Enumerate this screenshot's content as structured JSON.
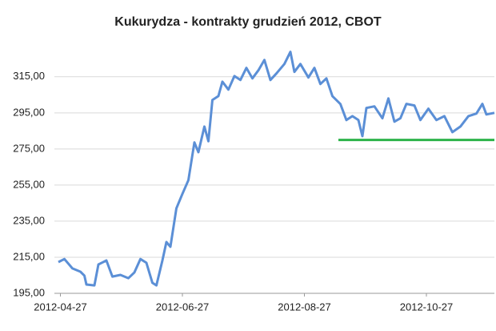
{
  "chart_data": {
    "type": "line",
    "title": "Kukurydza - kontrakty grudzień 2012, CBOT",
    "x": [
      "2012-04-26",
      "2012-04-29",
      "2012-05-03",
      "2012-05-07",
      "2012-05-09",
      "2012-05-10",
      "2012-05-14",
      "2012-05-16",
      "2012-05-20",
      "2012-05-23",
      "2012-05-27",
      "2012-05-31",
      "2012-06-03",
      "2012-06-06",
      "2012-06-09",
      "2012-06-12",
      "2012-06-14",
      "2012-06-17",
      "2012-06-19",
      "2012-06-21",
      "2012-06-24",
      "2012-06-27",
      "2012-06-30",
      "2012-07-03",
      "2012-07-05",
      "2012-07-08",
      "2012-07-10",
      "2012-07-12",
      "2012-07-15",
      "2012-07-17",
      "2012-07-20",
      "2012-07-23",
      "2012-07-26",
      "2012-07-29",
      "2012-08-01",
      "2012-08-04",
      "2012-08-07",
      "2012-08-10",
      "2012-08-13",
      "2012-08-17",
      "2012-08-20",
      "2012-08-22",
      "2012-08-25",
      "2012-08-29",
      "2012-09-01",
      "2012-09-04",
      "2012-09-07",
      "2012-09-10",
      "2012-09-14",
      "2012-09-17",
      "2012-09-20",
      "2012-09-23",
      "2012-09-25",
      "2012-09-27",
      "2012-10-01",
      "2012-10-05",
      "2012-10-08",
      "2012-10-11",
      "2012-10-14",
      "2012-10-17",
      "2012-10-21",
      "2012-10-24",
      "2012-10-28",
      "2012-11-01",
      "2012-11-05",
      "2012-11-09",
      "2012-11-13",
      "2012-11-17",
      "2012-11-21",
      "2012-11-24",
      "2012-11-26",
      "2012-11-30"
    ],
    "series": [
      {
        "name": "Kukurydza",
        "color": "#5b8fd6",
        "values": [
          212.3,
          214,
          208.8,
          207,
          204.8,
          199.9,
          199.4,
          211,
          213.2,
          204.3,
          205.2,
          203.4,
          206.6,
          214,
          211.9,
          200.8,
          199.4,
          213.2,
          223.4,
          220.8,
          242.1,
          250.1,
          257.7,
          278.6,
          273.2,
          287.4,
          279.3,
          302.1,
          304.3,
          312.3,
          307.9,
          315.4,
          313.2,
          319.9,
          314.1,
          318.6,
          324.3,
          313.2,
          316.8,
          322.1,
          328.8,
          317.7,
          322.1,
          314.6,
          319.9,
          311,
          314.1,
          304.3,
          299.9,
          291,
          293.2,
          291,
          282.1,
          297.7,
          298.6,
          292,
          303,
          290.1,
          292,
          300,
          299.1,
          291,
          297.3,
          291,
          293.2,
          284.3,
          287.4,
          293.2,
          294.6,
          300,
          294.1,
          295
        ]
      }
    ],
    "reference_line": {
      "value": 280,
      "x": [
        "2012-09-13",
        "2012-11-30"
      ],
      "color": "#2db34a"
    },
    "xlim": [
      "2012-04-24",
      "2012-11-30"
    ],
    "xticks": [
      "2012-04-27",
      "2012-06-27",
      "2012-08-27",
      "2012-10-27"
    ],
    "ylim": [
      195,
      330
    ],
    "yticks": [
      {
        "value": 195,
        "label": "195,00"
      },
      {
        "value": 215,
        "label": "215,00"
      },
      {
        "value": 235,
        "label": "235,00"
      },
      {
        "value": 255,
        "label": "255,00"
      },
      {
        "value": 275,
        "label": "275,00"
      },
      {
        "value": 295,
        "label": "295,00"
      },
      {
        "value": 315,
        "label": "315,00"
      }
    ],
    "grid": true
  }
}
